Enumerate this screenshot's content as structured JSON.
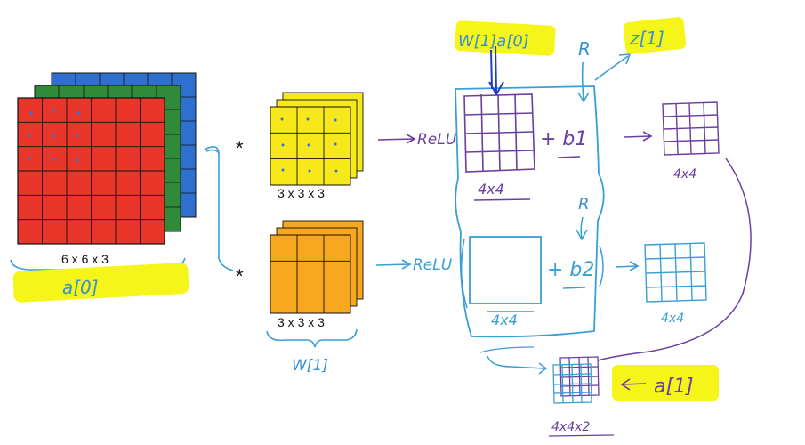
{
  "input": {
    "dims": "6 x 6 x 3",
    "brace_label": "a[0]",
    "layer_colors": [
      "#2e6fd0",
      "#2f8a3a",
      "#e8372a"
    ],
    "dot_color": "#3b6fd6"
  },
  "conv": {
    "star": "*",
    "filter1": {
      "dims": "3 x 3 x 3",
      "color": "#f7e81a"
    },
    "filter2": {
      "dims": "3 x 3 x 3",
      "color": "#f8a81f"
    },
    "filters_label": "W[1]"
  },
  "annotations": {
    "top_label": "W[1]a[0]",
    "relu1": "ReLU",
    "relu2": "ReLU",
    "bias1": "+ b1",
    "bias2": "+ b2",
    "z_label": "z[1]",
    "R1": "R",
    "R2": "R",
    "size_top": "4x4",
    "size_out1": "4x4",
    "size_bottom": "4x4",
    "size_out2": "4x4",
    "stack_label": "4x4x2",
    "a1_label": "a[1]",
    "purple_ink": "#6b3fa0",
    "blue_ink": "#3a9fd6"
  }
}
